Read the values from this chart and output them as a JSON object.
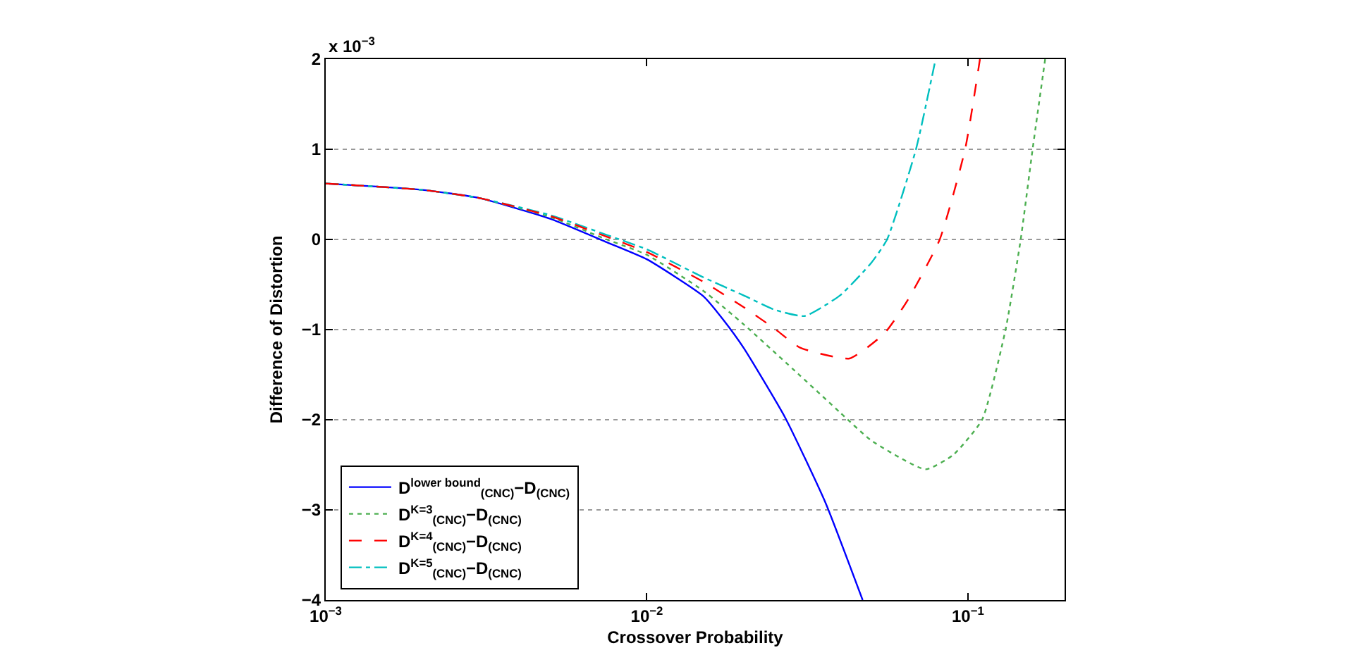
{
  "chart_data": {
    "type": "line",
    "xlabel": "Crossover Probability",
    "ylabel": "Difference of Distortion",
    "log": "x",
    "grid": "y",
    "legend": "bottom left",
    "marker": "none",
    "xlim": [
      0.001,
      0.2
    ],
    "xticks": [
      {
        "value": 0.001,
        "label": "10$^{−3}$"
      },
      {
        "value": 0.01,
        "label": "10$^{−2}$"
      },
      {
        "value": 0.1,
        "label": "10$^{−1}$"
      }
    ],
    "ylim": [
      -4,
      2
    ],
    "yticks": [
      {
        "value": -4,
        "label": "−4"
      },
      {
        "value": -3,
        "label": "−3"
      },
      {
        "value": -2,
        "label": "−2"
      },
      {
        "value": -1,
        "label": "−1"
      },
      0,
      1,
      2
    ],
    "annotations": [
      "x 10$^{−3}$"
    ],
    "series": [
      {
        "name": "D$^{lower bound}$$_{(CNC)}$−D$_{(CNC)}$",
        "color": "#0000ff",
        "line_style": "solid",
        "x": [
          0.001,
          0.002,
          0.003,
          0.005,
          0.0075,
          0.01,
          0.015,
          0.0173,
          0.02,
          0.027,
          0.036,
          0.047
        ],
        "values": [
          0.62,
          0.55,
          0.46,
          0.23,
          -0.03,
          -0.22,
          -0.63,
          -0.89,
          -1.2,
          -1.98,
          -2.92,
          -4.0
        ]
      },
      {
        "name": "D$^{K=3}$$_{(CNC)}$−D$_{(CNC)}$",
        "color": "#4caf50",
        "line_style": "dotted",
        "x": [
          0.001,
          0.002,
          0.003,
          0.005,
          0.0075,
          0.01,
          0.015,
          0.02,
          0.03,
          0.04,
          0.05,
          0.0738,
          0.09,
          0.1107,
          0.131,
          0.146,
          0.159,
          0.174
        ],
        "values": [
          0.62,
          0.55,
          0.46,
          0.25,
          0.0,
          -0.17,
          -0.57,
          -0.94,
          -1.51,
          -1.92,
          -2.23,
          -2.55,
          -2.39,
          -2.0,
          -1.0,
          0.0,
          1.0,
          2.0
        ]
      },
      {
        "name": "D$^{K=4}$$_{(CNC)}$−D$_{(CNC)}$",
        "color": "#ff0000",
        "line_style": "dashed",
        "x": [
          0.001,
          0.002,
          0.003,
          0.005,
          0.0075,
          0.01,
          0.015,
          0.02,
          0.025,
          0.03,
          0.0428,
          0.055,
          0.065,
          0.0817,
          0.098,
          0.109
        ],
        "values": [
          0.62,
          0.55,
          0.46,
          0.26,
          0.03,
          -0.14,
          -0.47,
          -0.75,
          -0.99,
          -1.2,
          -1.32,
          -1.04,
          -0.67,
          0.0,
          1.0,
          2.0
        ]
      },
      {
        "name": "D$^{K=5}$$_{(CNC)}$−D$_{(CNC)}$",
        "color": "#00bfbf",
        "line_style": "dashdot",
        "x": [
          0.001,
          0.002,
          0.003,
          0.005,
          0.0075,
          0.01,
          0.015,
          0.02,
          0.025,
          0.031,
          0.04,
          0.05,
          0.056,
          0.0689,
          0.0793
        ],
        "values": [
          0.62,
          0.55,
          0.46,
          0.27,
          0.05,
          -0.11,
          -0.42,
          -0.62,
          -0.78,
          -0.85,
          -0.62,
          -0.26,
          0.0,
          1.0,
          2.0
        ]
      }
    ]
  }
}
